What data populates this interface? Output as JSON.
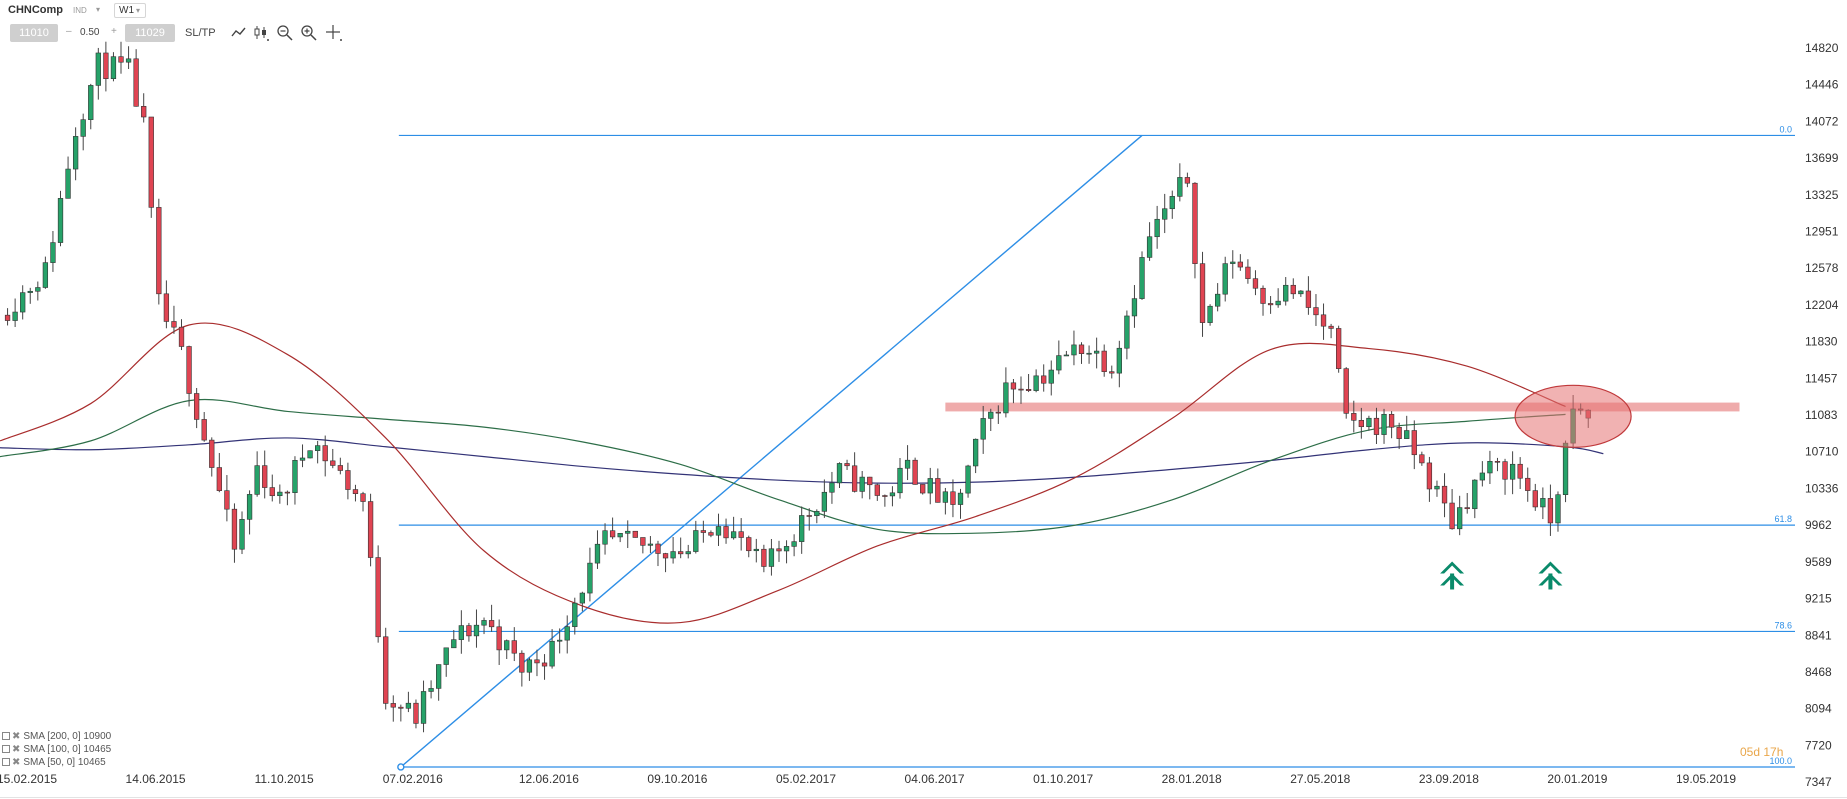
{
  "toolbar": {
    "symbol": "CHNComp",
    "instrument_type": "IND",
    "timeframe": "W1",
    "bid": "11010",
    "ask": "11029",
    "spread": "0.50",
    "spread_minus": "–",
    "spread_plus": "+",
    "sltp_label": "SL/TP",
    "tools": [
      "line-chart-icon",
      "candle-chart-icon",
      "zoom-out-icon",
      "zoom-in-icon",
      "crosshair-icon"
    ]
  },
  "legend": [
    {
      "label": "SMA [200, 0] 10900"
    },
    {
      "label": "SMA [100, 0] 10465"
    },
    {
      "label": "SMA [50, 0] 10465"
    }
  ],
  "colors": {
    "up": "#26a269",
    "down": "#e04452",
    "fib": "#2d8ee6",
    "sma_red": "#a92d2d",
    "sma_green": "#2d6e48",
    "sma_blue": "#333377",
    "resistance": "#e57373",
    "arrow": "#0a8a6a"
  },
  "chart_data": {
    "type": "candlestick",
    "y_ticks": [
      "14820",
      "14446",
      "14072",
      "13699",
      "13325",
      "12951",
      "12578",
      "12204",
      "11830",
      "11457",
      "11083",
      "10710",
      "10336",
      "9962",
      "9589",
      "9215",
      "8841",
      "8468",
      "8094",
      "7720",
      "7347"
    ],
    "x_ticks": [
      "15.02.2015",
      "14.06.2015",
      "11.10.2015",
      "07.02.2016",
      "12.06.2016",
      "09.10.2016",
      "05.02.2017",
      "04.06.2017",
      "01.10.2017",
      "28.01.2018",
      "27.05.2018",
      "23.09.2018",
      "20.01.2019",
      "19.05.2019"
    ],
    "ylim": [
      7347,
      14820
    ],
    "date_range": [
      "2015-01-21",
      "2019-08-14"
    ],
    "fib_levels": [
      {
        "label": "0.0",
        "value": 13930
      },
      {
        "label": "61.8",
        "value": 9962
      },
      {
        "label": "78.6",
        "value": 8880
      },
      {
        "label": "100.0",
        "value": 7500
      }
    ],
    "fib_trendline": {
      "from": [
        "2016-01-27",
        7500
      ],
      "to": [
        "2017-12-13",
        13930
      ]
    },
    "resistance_zone": {
      "from": "2017-06-14",
      "to": "2019-06-19",
      "low": 11120,
      "high": 11210
    },
    "highlight": {
      "date": "2019-01-16",
      "value": 11070,
      "note": "circle"
    },
    "arrows": [
      {
        "date": "2018-09-26",
        "value": 9470
      },
      {
        "date": "2018-12-26",
        "value": 9470
      }
    ],
    "last_label": "05d 17h",
    "series_sma": [
      {
        "name": "SMA [200, 0] 10900",
        "color_key": "sma_blue",
        "points": [
          [
            "2015-01-21",
            10750
          ],
          [
            "2015-04-15",
            10730
          ],
          [
            "2015-07-15",
            10780
          ],
          [
            "2015-10-14",
            10850
          ],
          [
            "2016-01-13",
            10760
          ],
          [
            "2016-04-13",
            10660
          ],
          [
            "2016-07-13",
            10560
          ],
          [
            "2016-10-12",
            10480
          ],
          [
            "2017-01-11",
            10420
          ],
          [
            "2017-04-12",
            10390
          ],
          [
            "2017-07-12",
            10400
          ],
          [
            "2017-10-11",
            10450
          ],
          [
            "2018-01-10",
            10530
          ],
          [
            "2018-04-11",
            10620
          ],
          [
            "2018-07-11",
            10730
          ],
          [
            "2018-10-10",
            10800
          ],
          [
            "2019-01-09",
            10760
          ],
          [
            "2019-02-13",
            10690
          ]
        ]
      },
      {
        "name": "SMA [100, 0] 10465",
        "color_key": "sma_green",
        "points": [
          [
            "2015-01-21",
            10660
          ],
          [
            "2015-04-15",
            10820
          ],
          [
            "2015-07-15",
            11230
          ],
          [
            "2015-10-14",
            11120
          ],
          [
            "2016-01-13",
            11040
          ],
          [
            "2016-04-13",
            10960
          ],
          [
            "2016-07-13",
            10810
          ],
          [
            "2016-10-12",
            10580
          ],
          [
            "2017-01-11",
            10220
          ],
          [
            "2017-04-12",
            9920
          ],
          [
            "2017-07-12",
            9880
          ],
          [
            "2017-10-11",
            9960
          ],
          [
            "2018-01-10",
            10220
          ],
          [
            "2018-04-11",
            10620
          ],
          [
            "2018-07-11",
            10930
          ],
          [
            "2018-10-10",
            11020
          ],
          [
            "2019-01-09",
            11090
          ]
        ]
      },
      {
        "name": "SMA [50, 0] 10465",
        "color_key": "sma_red",
        "points": [
          [
            "2015-01-21",
            10820
          ],
          [
            "2015-04-15",
            11200
          ],
          [
            "2015-07-15",
            12000
          ],
          [
            "2015-10-14",
            11700
          ],
          [
            "2016-01-13",
            10850
          ],
          [
            "2016-04-13",
            9700
          ],
          [
            "2016-07-13",
            9140
          ],
          [
            "2016-10-12",
            8970
          ],
          [
            "2017-01-11",
            9300
          ],
          [
            "2017-04-12",
            9750
          ],
          [
            "2017-07-12",
            10050
          ],
          [
            "2017-10-11",
            10440
          ],
          [
            "2018-01-10",
            11050
          ],
          [
            "2018-04-11",
            11750
          ],
          [
            "2018-07-11",
            11760
          ],
          [
            "2018-10-10",
            11580
          ],
          [
            "2019-01-09",
            11170
          ]
        ]
      }
    ],
    "anchors": [
      [
        "2015-01-21",
        12100
      ],
      [
        "2015-03-04",
        12550
      ],
      [
        "2015-04-01",
        14000
      ],
      [
        "2015-04-22",
        14650
      ],
      [
        "2015-05-20",
        14580
      ],
      [
        "2015-06-03",
        14000
      ],
      [
        "2015-06-17",
        12200
      ],
      [
        "2015-07-08",
        11700
      ],
      [
        "2015-08-12",
        10300
      ],
      [
        "2015-08-26",
        9700
      ],
      [
        "2015-09-16",
        10550
      ],
      [
        "2015-10-07",
        10200
      ],
      [
        "2015-11-04",
        10850
      ],
      [
        "2015-12-23",
        10200
      ],
      [
        "2016-01-13",
        8250
      ],
      [
        "2016-02-10",
        8000
      ],
      [
        "2016-03-16",
        8800
      ],
      [
        "2016-04-13",
        9000
      ],
      [
        "2016-05-18",
        8500
      ],
      [
        "2016-06-15",
        8700
      ],
      [
        "2016-07-06",
        9200
      ],
      [
        "2016-08-03",
        9800
      ],
      [
        "2016-10-19",
        9700
      ],
      [
        "2016-11-16",
        10050
      ],
      [
        "2016-12-28",
        9500
      ],
      [
        "2017-01-25",
        9900
      ],
      [
        "2017-03-08",
        10500
      ],
      [
        "2017-04-19",
        10250
      ],
      [
        "2017-05-10",
        10550
      ],
      [
        "2017-06-21",
        10100
      ],
      [
        "2017-07-19",
        10950
      ],
      [
        "2017-08-09",
        11350
      ],
      [
        "2017-09-13",
        11500
      ],
      [
        "2017-10-18",
        11800
      ],
      [
        "2017-11-15",
        11600
      ],
      [
        "2017-12-20",
        12900
      ],
      [
        "2018-01-24",
        13500
      ],
      [
        "2018-02-07",
        12000
      ],
      [
        "2018-03-07",
        12700
      ],
      [
        "2018-04-04",
        12300
      ],
      [
        "2018-05-02",
        12350
      ],
      [
        "2018-06-06",
        11900
      ],
      [
        "2018-06-20",
        11000
      ],
      [
        "2018-08-01",
        11000
      ],
      [
        "2018-08-22",
        10700
      ],
      [
        "2018-09-26",
        10000
      ],
      [
        "2018-10-24",
        10500
      ],
      [
        "2018-11-21",
        10550
      ],
      [
        "2018-12-26",
        10000
      ],
      [
        "2019-01-16",
        11080
      ],
      [
        "2019-01-30",
        11050
      ]
    ]
  }
}
